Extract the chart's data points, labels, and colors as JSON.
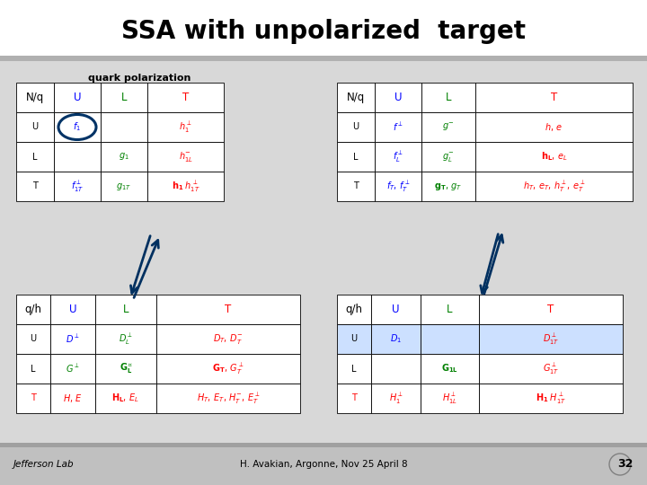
{
  "title": "SSA with unpolarized  target",
  "subtitle": "quark polarization",
  "footer": "H. Avakian, Argonne, Nov 25 April 8",
  "slide_num": "32",
  "t1_cells": [
    [
      "N/q",
      "U",
      "L",
      "T"
    ],
    [
      "U",
      "$f_1$",
      "",
      "$h_1^{\\perp}$"
    ],
    [
      "L",
      "",
      "$g_1$",
      "$h_{1L}^{-}$"
    ],
    [
      "T",
      "$f_{1T}^{\\perp}$",
      "$g_{1T}$",
      "$\\mathbf{h_1}\\;h_{1T}^{\\perp}$"
    ]
  ],
  "t1_colors": [
    [
      "black",
      "blue",
      "green",
      "red"
    ],
    [
      "black",
      "blue",
      "green",
      "red"
    ],
    [
      "black",
      "blue",
      "green",
      "red"
    ],
    [
      "black",
      "blue",
      "green",
      "red"
    ]
  ],
  "t2_cells": [
    [
      "N/q",
      "U",
      "L",
      "T"
    ],
    [
      "U",
      "$f^{\\perp}$",
      "$g^{-}$",
      "$h,\\,e$"
    ],
    [
      "L",
      "$f_L^{\\perp}$",
      "$g_L^{-}$",
      "$\\mathbf{h_L},\\,e_L$"
    ],
    [
      "T",
      "$f_T,\\,f_T^{\\perp}$",
      "$\\mathbf{g_T},\\,g_T$",
      "$h_T,\\,e_T,\\,h_T^{\\perp},\\,e_T^{\\perp}$"
    ]
  ],
  "t2_colors": [
    [
      "black",
      "blue",
      "green",
      "red"
    ],
    [
      "black",
      "blue",
      "green",
      "red"
    ],
    [
      "black",
      "blue",
      "green",
      "red"
    ],
    [
      "black",
      "blue",
      "green",
      "red"
    ]
  ],
  "t3_cells": [
    [
      "q/h",
      "U",
      "L",
      "T"
    ],
    [
      "U",
      "$D^{\\perp}$",
      "$D_L^{\\perp}$",
      "$D_T,\\,D_T^{-}$"
    ],
    [
      "L",
      "$G^{\\perp}$",
      "$\\mathbf{G_L^{\\perp}}$",
      "$\\mathbf{G_T},\\,G_T^{\\perp}$"
    ],
    [
      "T",
      "$H,\\,E$",
      "$\\mathbf{H_L},\\,E_L$",
      "$H_T,\\,E_T,\\,H_T^{-},\\,E_T^{\\perp}$"
    ]
  ],
  "t3_colors": [
    [
      "black",
      "blue",
      "green",
      "red"
    ],
    [
      "black",
      "blue",
      "green",
      "red"
    ],
    [
      "black",
      "green",
      "green",
      "red"
    ],
    [
      "red",
      "red",
      "red",
      "red"
    ]
  ],
  "t4_cells": [
    [
      "q/h",
      "U",
      "L",
      "T"
    ],
    [
      "U",
      "$D_1$",
      "",
      "$D_{1T}^{\\perp}$"
    ],
    [
      "L",
      "",
      "$\\mathbf{G_{1L}}$",
      "$G_{1T}^{\\perp}$"
    ],
    [
      "T",
      "$H_1^{\\perp}$",
      "$H_{1L}^{\\perp}$",
      "$\\mathbf{H_1}\\;H_{1T}^{\\perp}$"
    ]
  ],
  "t4_colors": [
    [
      "black",
      "blue",
      "green",
      "red"
    ],
    [
      "black",
      "blue",
      "green",
      "red"
    ],
    [
      "black",
      "blue",
      "green",
      "red"
    ],
    [
      "red",
      "red",
      "red",
      "red"
    ]
  ]
}
